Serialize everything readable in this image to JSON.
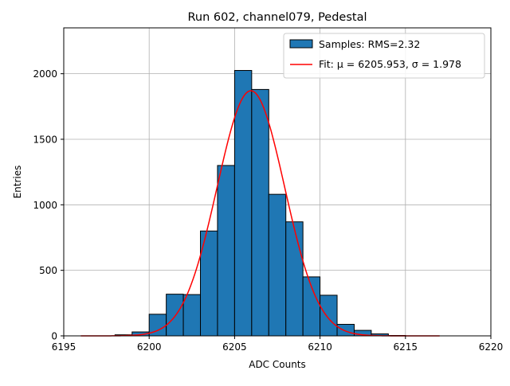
{
  "chart_data": {
    "type": "bar",
    "title": "Run 602, channel079, Pedestal",
    "xlabel": "ADC Counts",
    "ylabel": "Entries",
    "xlim": [
      6195,
      6220
    ],
    "ylim": [
      0,
      2350
    ],
    "grid": true,
    "legend_position": "top-right",
    "x_ticks": [
      6195,
      6200,
      6205,
      6210,
      6215,
      6220
    ],
    "y_ticks": [
      0,
      500,
      1000,
      1500,
      2000
    ],
    "bin_width": 1,
    "series": [
      {
        "name": "Samples: RMS=2.32",
        "kind": "histogram",
        "color": "#1f77b4",
        "edgecolor": "#000000",
        "bins": [
          {
            "x": 6198,
            "count": 8
          },
          {
            "x": 6199,
            "count": 30
          },
          {
            "x": 6200,
            "count": 165
          },
          {
            "x": 6201,
            "count": 318
          },
          {
            "x": 6202,
            "count": 315
          },
          {
            "x": 6203,
            "count": 800
          },
          {
            "x": 6204,
            "count": 1300
          },
          {
            "x": 6205,
            "count": 2025
          },
          {
            "x": 6206,
            "count": 1880
          },
          {
            "x": 6207,
            "count": 1080
          },
          {
            "x": 6208,
            "count": 870
          },
          {
            "x": 6209,
            "count": 450
          },
          {
            "x": 6210,
            "count": 310
          },
          {
            "x": 6211,
            "count": 88
          },
          {
            "x": 6212,
            "count": 42
          },
          {
            "x": 6213,
            "count": 15
          },
          {
            "x": 6214,
            "count": 3
          }
        ]
      },
      {
        "name": "Fit: μ = 6205.953, σ = 1.978",
        "kind": "gaussian-fit",
        "color": "#ff0000",
        "mu": 6205.953,
        "sigma": 1.978,
        "amplitude": 1870,
        "x_range": [
          6196,
          6217
        ]
      }
    ]
  }
}
